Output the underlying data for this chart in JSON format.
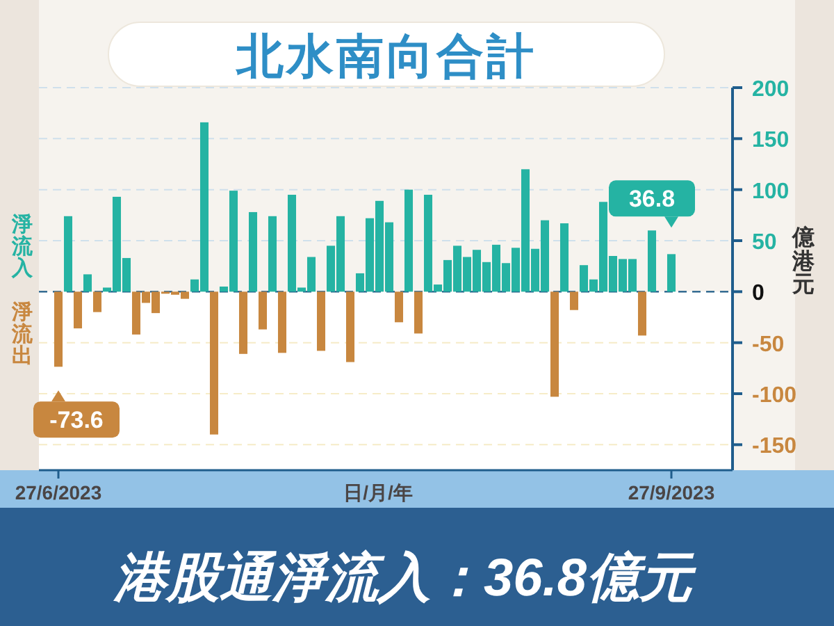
{
  "chart_data": {
    "type": "bar",
    "title": "北水南向合計",
    "categories": [
      "27/6/2023",
      null,
      null,
      null,
      null,
      null,
      null,
      null,
      null,
      null,
      null,
      null,
      null,
      null,
      null,
      null,
      null,
      null,
      null,
      null,
      null,
      null,
      null,
      null,
      null,
      null,
      null,
      null,
      null,
      null,
      null,
      null,
      null,
      null,
      null,
      null,
      null,
      null,
      null,
      null,
      null,
      null,
      null,
      null,
      null,
      null,
      null,
      null,
      null,
      null,
      null,
      null,
      null,
      null,
      null,
      null,
      null,
      null,
      null,
      null,
      null,
      null,
      null,
      "27/9/2023"
    ],
    "values": [
      -73.6,
      74,
      -36,
      17,
      -20,
      4,
      93,
      33,
      -42,
      -11,
      -21,
      -2,
      -3,
      -7,
      12,
      166,
      -140,
      5,
      99,
      -61,
      78,
      -37,
      74,
      -60,
      95,
      4,
      34,
      -58,
      45,
      74,
      -69,
      18,
      72,
      89,
      68,
      -30,
      100,
      -41,
      95,
      7,
      31,
      45,
      34,
      41,
      29,
      46,
      28,
      43,
      120,
      42,
      70,
      -103,
      67,
      -18,
      26,
      12,
      88,
      35,
      32,
      32,
      -43,
      60,
      null,
      36.8
    ],
    "colors": [
      "#c8873f",
      "#25b3a3",
      "#c8873f",
      "#25b3a3",
      "#c8873f",
      "#25b3a3",
      "#25b3a3",
      "#25b3a3",
      "#c8873f",
      "#c8873f",
      "#c8873f",
      "#c8873f",
      "#c8873f",
      "#c8873f",
      "#25b3a3",
      "#25b3a3",
      "#c8873f",
      "#25b3a3",
      "#25b3a3",
      "#c8873f",
      "#25b3a3",
      "#c8873f",
      "#25b3a3",
      "#c8873f",
      "#25b3a3",
      "#25b3a3",
      "#25b3a3",
      "#c8873f",
      "#25b3a3",
      "#25b3a3",
      "#c8873f",
      "#25b3a3",
      "#25b3a3",
      "#25b3a3",
      "#25b3a3",
      "#c8873f",
      "#25b3a3",
      "#c8873f",
      "#25b3a3",
      "#25b3a3",
      "#25b3a3",
      "#25b3a3",
      "#25b3a3",
      "#25b3a3",
      "#25b3a3",
      "#25b3a3",
      "#25b3a3",
      "#25b3a3",
      "#25b3a3",
      "#25b3a3",
      "#25b3a3",
      "#c8873f",
      "#25b3a3",
      "#c8873f",
      "#25b3a3",
      "#25b3a3",
      "#25b3a3",
      "#25b3a3",
      "#25b3a3",
      "#25b3a3",
      "#c8873f",
      "#25b3a3",
      null,
      "#25b3a3"
    ],
    "value_labels": [
      "-73.6",
      null,
      null,
      null,
      null,
      null,
      null,
      null,
      null,
      null,
      null,
      null,
      null,
      null,
      null,
      null,
      null,
      null,
      null,
      null,
      null,
      null,
      null,
      null,
      null,
      null,
      null,
      null,
      null,
      null,
      null,
      null,
      null,
      null,
      null,
      null,
      null,
      null,
      null,
      null,
      null,
      null,
      null,
      null,
      null,
      null,
      null,
      null,
      null,
      null,
      null,
      null,
      null,
      null,
      null,
      null,
      null,
      null,
      null,
      null,
      null,
      null,
      null,
      "36.8"
    ],
    "xlabel": "日/月/年",
    "ylabel": "億港元",
    "ylim": [
      -175,
      200
    ],
    "yticks": [
      -150,
      -100,
      -50,
      0,
      50,
      100,
      150,
      200
    ],
    "grid": "y",
    "ref_lines": [
      {
        "axis": "y",
        "value": 0,
        "color": "#1f5d8c",
        "line_style": "dashed"
      }
    ],
    "annotations": [
      "淨流入",
      "淨流出",
      "港股通淨流入：36.8億元"
    ]
  }
}
